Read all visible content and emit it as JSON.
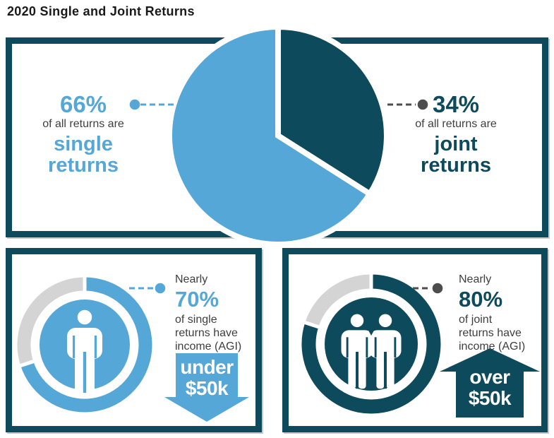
{
  "title": "2020 Single and Joint Returns",
  "colors": {
    "blue": "#55a7d8",
    "teal": "#0d4b5c",
    "gray_ring": "#d4d4d4",
    "text_dark": "#3e3e3e",
    "callout_gray": "#4d4d4d",
    "white": "#ffffff"
  },
  "chart_data": [
    {
      "type": "pie",
      "title": "2020 Single and Joint Returns",
      "slices": [
        {
          "label": "joint returns",
          "value_pct": 34,
          "color": "#0d4b5c"
        },
        {
          "label": "single returns",
          "value_pct": 66,
          "color": "#55a7d8"
        }
      ],
      "start_angle": "12 o'clock",
      "direction": "clockwise",
      "annotations": [
        "66% of all returns are single returns",
        "34% of all returns are joint returns"
      ]
    },
    {
      "type": "donut",
      "subject": "single returns",
      "value_pct": 70,
      "remainder_pct": 30,
      "color": "#55a7d8",
      "remainder_color": "#d4d4d4",
      "annotation": "Nearly 70% of single returns have income (AGI) under $50k"
    },
    {
      "type": "donut",
      "subject": "joint returns",
      "value_pct": 80,
      "remainder_pct": 20,
      "color": "#0d4b5c",
      "remainder_color": "#d4d4d4",
      "annotation": "Nearly 80% of joint returns have income (AGI) over $50k"
    }
  ],
  "pie_labels": {
    "left": {
      "pct": "66%",
      "sub": "of all returns are",
      "category": "single\nreturns"
    },
    "right": {
      "pct": "34%",
      "sub": "of all returns are",
      "category": "joint\nreturns"
    }
  },
  "panel_single": {
    "nearly": "Nearly",
    "pct": "70%",
    "desc": "of single\nreturns have\nincome (AGI)",
    "arrow_text": "under\n$50k"
  },
  "panel_joint": {
    "nearly": "Nearly",
    "pct": "80%",
    "desc": "of joint\nreturns have\nincome (AGI)",
    "arrow_text": "over\n$50k"
  }
}
